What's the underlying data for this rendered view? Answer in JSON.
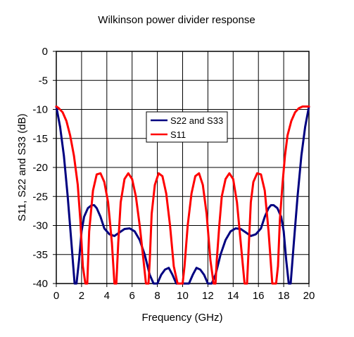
{
  "chart_data": {
    "type": "line",
    "title": "Wilkinson power divider response",
    "xlabel": "Frequency (GHz)",
    "ylabel": "S11, S22 and S33 (dB)",
    "xlim": [
      0,
      20
    ],
    "ylim": [
      -40,
      0
    ],
    "x_ticks": [
      0,
      2,
      4,
      6,
      8,
      10,
      12,
      14,
      16,
      18,
      20
    ],
    "y_ticks": [
      0,
      -5,
      -10,
      -15,
      -20,
      -25,
      -30,
      -35,
      -40
    ],
    "grid": true,
    "legend_position": "center",
    "series": [
      {
        "name": "S22 and S33",
        "color": "#000080",
        "x": [
          0,
          0.3,
          0.6,
          0.9,
          1.2,
          1.45,
          1.6,
          1.8,
          2.0,
          2.2,
          2.5,
          2.8,
          3.0,
          3.2,
          3.5,
          3.8,
          4.2,
          4.6,
          5.0,
          5.4,
          5.8,
          6.2,
          6.6,
          7.0,
          7.4,
          7.7,
          8.0,
          8.3,
          8.6,
          8.9,
          9.2,
          9.5,
          9.8,
          10.0,
          10.2,
          10.5,
          10.8,
          11.1,
          11.4,
          11.7,
          12.0,
          12.3,
          12.6,
          13.0,
          13.4,
          13.8,
          14.2,
          14.6,
          15.0,
          15.4,
          15.8,
          16.2,
          16.5,
          16.8,
          17.0,
          17.2,
          17.5,
          17.8,
          18.0,
          18.2,
          18.4,
          18.55,
          18.8,
          19.1,
          19.4,
          19.7,
          20.0
        ],
        "y": [
          -9.5,
          -13,
          -18,
          -25,
          -33,
          -40,
          -40,
          -36,
          -31,
          -28.5,
          -27,
          -26.5,
          -26.5,
          -27,
          -28.5,
          -30.5,
          -31.5,
          -31.8,
          -31.2,
          -30.6,
          -30.5,
          -31,
          -32.5,
          -35,
          -38.5,
          -40,
          -40,
          -38.5,
          -37.6,
          -37.3,
          -38.5,
          -40,
          -40,
          -40,
          -40,
          -40,
          -38.5,
          -37.3,
          -37.6,
          -38.5,
          -40,
          -40,
          -38.5,
          -35,
          -32.5,
          -31,
          -30.5,
          -30.6,
          -31.2,
          -31.8,
          -31.5,
          -30.5,
          -28.5,
          -27,
          -26.5,
          -26.5,
          -27,
          -28.5,
          -31,
          -36,
          -40,
          -40,
          -33,
          -25,
          -18,
          -13,
          -9.5
        ]
      },
      {
        "name": "S11",
        "color": "#ff0000",
        "x": [
          0,
          0.2,
          0.5,
          0.8,
          1.1,
          1.4,
          1.7,
          1.9,
          2.1,
          2.3,
          2.45,
          2.6,
          2.9,
          3.2,
          3.5,
          3.8,
          4.1,
          4.4,
          4.6,
          4.75,
          4.9,
          5.1,
          5.4,
          5.7,
          6.0,
          6.3,
          6.6,
          6.9,
          7.1,
          7.3,
          7.4,
          7.55,
          7.8,
          8.1,
          8.4,
          8.7,
          9.0,
          9.3,
          9.6,
          9.85,
          10.0,
          10.15,
          10.4,
          10.7,
          11.0,
          11.3,
          11.6,
          11.9,
          12.2,
          12.45,
          12.6,
          12.7,
          12.9,
          13.1,
          13.4,
          13.7,
          14.0,
          14.3,
          14.6,
          14.9,
          15.1,
          15.25,
          15.4,
          15.6,
          15.9,
          16.2,
          16.5,
          16.8,
          17.1,
          17.4,
          17.55,
          17.7,
          17.9,
          18.1,
          18.3,
          18.6,
          18.9,
          19.2,
          19.5,
          19.8,
          20.0
        ],
        "y": [
          -9.5,
          -9.8,
          -10.5,
          -12,
          -14.5,
          -18,
          -23,
          -29,
          -37,
          -40,
          -40,
          -31,
          -24,
          -21.2,
          -21,
          -22.5,
          -26,
          -33,
          -40,
          -40,
          -33,
          -26,
          -22,
          -21,
          -22,
          -25,
          -30,
          -36,
          -40,
          -40,
          -36,
          -28,
          -23,
          -21,
          -21.5,
          -24.5,
          -30,
          -37,
          -40,
          -40,
          -40,
          -37,
          -30,
          -24.5,
          -21.5,
          -21,
          -23,
          -28,
          -36,
          -40,
          -40,
          -36,
          -30,
          -25,
          -22,
          -21,
          -22,
          -26,
          -33,
          -40,
          -40,
          -33,
          -26,
          -22.5,
          -21,
          -21.2,
          -24,
          -31,
          -40,
          -40,
          -37,
          -29,
          -23,
          -18,
          -14.5,
          -12,
          -10.5,
          -9.8,
          -9.5,
          -9.5,
          -9.5
        ]
      }
    ]
  }
}
